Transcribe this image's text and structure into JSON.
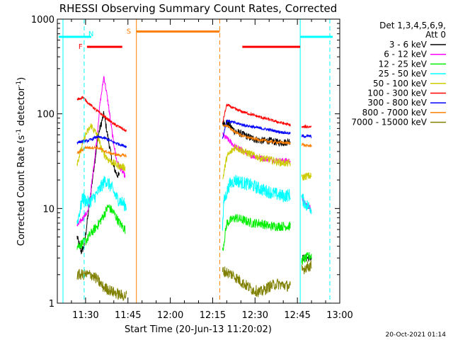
{
  "chart_data": {
    "type": "line",
    "title": "RHESSI Observing Summary Count Rates, Corrected",
    "xlabel": "Start Time (20-Jun-13 11:20:02)",
    "ylabel": "Corrected Count Rate (s⁻¹ detector⁻¹)",
    "ylabel_main": "Corrected Count Rate (s",
    "ylabel_sup1": "-1",
    "ylabel_mid": " detector",
    "ylabel_sup2": "-1",
    "ylabel_end": ")",
    "xlim_min": [
      20.0,
      120.0
    ],
    "ylim": [
      1,
      1000
    ],
    "yscale": "log",
    "x_ticks": [
      {
        "min": 30,
        "label": "11:30"
      },
      {
        "min": 45,
        "label": "11:45"
      },
      {
        "min": 60,
        "label": "12:00"
      },
      {
        "min": 75,
        "label": "12:15"
      },
      {
        "min": 90,
        "label": "12:30"
      },
      {
        "min": 105,
        "label": "12:45"
      },
      {
        "min": 120,
        "label": "13:00"
      }
    ],
    "y_ticks": [
      {
        "value": 1,
        "label": "1"
      },
      {
        "value": 10,
        "label": "10"
      },
      {
        "value": 100,
        "label": "100"
      },
      {
        "value": 1000,
        "label": "1000"
      }
    ],
    "legend": {
      "placement": "right",
      "header1": "Det 1,3,4,5,6,9,",
      "header2": "Att 0",
      "entries": [
        {
          "name": "3 - 6 keV",
          "color": "#000000"
        },
        {
          "name": "6 - 12 keV",
          "color": "#ff00ff"
        },
        {
          "name": "12 - 25 keV",
          "color": "#00ee00"
        },
        {
          "name": "25 - 50 keV",
          "color": "#00ffff"
        },
        {
          "name": "50 - 100 keV",
          "color": "#cccc00"
        },
        {
          "name": "100 - 300 keV",
          "color": "#ff0000"
        },
        {
          "name": "300 - 800 keV",
          "color": "#0000ff"
        },
        {
          "name": "800 - 7000 keV",
          "color": "#ff8000"
        },
        {
          "name": "7000 - 15000 keV",
          "color": "#808000"
        }
      ]
    },
    "series": [
      {
        "name": "3 - 6 keV",
        "color": "#000000",
        "noise": 0.04,
        "segments": [
          [
            [
              27,
              5.0
            ],
            [
              28.5,
              3.5
            ],
            [
              29.5,
              4.0
            ],
            [
              31.5,
              12
            ],
            [
              33,
              28
            ],
            [
              34.5,
              60
            ],
            [
              36.5,
              100
            ],
            [
              38,
              55
            ],
            [
              39.5,
              30
            ],
            [
              41,
              23
            ],
            [
              42,
              22
            ]
          ],
          [
            [
              78.5,
              80
            ],
            [
              80,
              80
            ],
            [
              83,
              65
            ],
            [
              86,
              60
            ],
            [
              89,
              55
            ],
            [
              92,
              52
            ],
            [
              95,
              52
            ],
            [
              98,
              50
            ],
            [
              101,
              50
            ],
            [
              102.5,
              52
            ]
          ],
          [
            [
              106.5,
              3.0
            ],
            [
              110,
              3.0
            ]
          ]
        ]
      },
      {
        "name": "6 - 12 keV",
        "color": "#ff00ff",
        "noise": 0.03,
        "segments": [
          [
            [
              27,
              6.5
            ],
            [
              31,
              9.5
            ],
            [
              32.5,
              22
            ],
            [
              34,
              55
            ],
            [
              35,
              120
            ],
            [
              36.5,
              250
            ],
            [
              38,
              130
            ],
            [
              39.5,
              60
            ],
            [
              41,
              32
            ],
            [
              42.5,
              26
            ],
            [
              44,
              22
            ]
          ],
          [
            [
              78.5,
              60
            ],
            [
              80,
              55
            ],
            [
              83,
              45
            ],
            [
              86,
              40
            ],
            [
              89,
              36
            ],
            [
              92,
              34
            ],
            [
              95,
              33
            ],
            [
              98,
              32
            ],
            [
              102.5,
              32
            ]
          ],
          [
            [
              106.5,
              13
            ],
            [
              108,
              11
            ],
            [
              110,
              10
            ]
          ]
        ]
      },
      {
        "name": "12 - 25 keV",
        "color": "#00ee00",
        "noise": 0.05,
        "segments": [
          [
            [
              27,
              4.0
            ],
            [
              30,
              4.5
            ],
            [
              32,
              5.5
            ],
            [
              34,
              6.5
            ],
            [
              36,
              8.0
            ],
            [
              38,
              10.5
            ],
            [
              40,
              9.0
            ],
            [
              42,
              7.0
            ],
            [
              44,
              6.0
            ]
          ],
          [
            [
              78.5,
              3.5
            ],
            [
              80,
              7.0
            ],
            [
              83,
              8.0
            ],
            [
              86,
              7.5
            ],
            [
              89,
              7.0
            ],
            [
              92,
              7.0
            ],
            [
              95,
              6.5
            ],
            [
              98,
              6.5
            ],
            [
              102.5,
              6.5
            ]
          ],
          [
            [
              106.5,
              2.8
            ],
            [
              108,
              3.0
            ],
            [
              110,
              3.2
            ]
          ]
        ]
      },
      {
        "name": "25 - 50 keV",
        "color": "#00ffff",
        "noise": 0.07,
        "segments": [
          [
            [
              27,
              7.0
            ],
            [
              29,
              13
            ],
            [
              31,
              11.5
            ],
            [
              33,
              13
            ],
            [
              35,
              16
            ],
            [
              37,
              20
            ],
            [
              39,
              17
            ],
            [
              41,
              13
            ],
            [
              43,
              11.5
            ],
            [
              44.5,
              10.5
            ]
          ],
          [
            [
              78.5,
              6.5
            ],
            [
              79,
              12
            ],
            [
              81,
              18
            ],
            [
              83,
              20
            ],
            [
              86,
              18.5
            ],
            [
              89,
              17.5
            ],
            [
              92,
              16
            ],
            [
              95,
              15
            ],
            [
              98,
              14
            ],
            [
              100,
              13.5
            ],
            [
              102.5,
              14
            ]
          ],
          [
            [
              106.5,
              13
            ],
            [
              108,
              11
            ],
            [
              110,
              10
            ]
          ]
        ]
      },
      {
        "name": "50 - 100 keV",
        "color": "#cccc00",
        "noise": 0.04,
        "segments": [
          [
            [
              27,
              30
            ],
            [
              30,
              60
            ],
            [
              32,
              75
            ],
            [
              34,
              60
            ],
            [
              36,
              40
            ],
            [
              38,
              33
            ],
            [
              40,
              30
            ],
            [
              42,
              28
            ],
            [
              44,
              27
            ]
          ],
          [
            [
              78.5,
              20
            ],
            [
              80,
              35
            ],
            [
              83,
              45
            ],
            [
              86,
              40
            ],
            [
              89,
              37
            ],
            [
              92,
              34
            ],
            [
              95,
              33
            ],
            [
              98,
              31
            ],
            [
              101,
              30
            ],
            [
              102.5,
              30
            ]
          ],
          [
            [
              106.5,
              21
            ],
            [
              108,
              22
            ],
            [
              110,
              22
            ]
          ]
        ]
      },
      {
        "name": "100 - 300 keV",
        "color": "#ff0000",
        "noise": 0.015,
        "segments": [
          [
            [
              27,
              140
            ],
            [
              29,
              150
            ],
            [
              31,
              130
            ],
            [
              34,
              108
            ],
            [
              37,
              92
            ],
            [
              40,
              78
            ],
            [
              43,
              70
            ],
            [
              44.5,
              65
            ]
          ],
          [
            [
              78.5,
              80
            ],
            [
              80,
              125
            ],
            [
              83,
              112
            ],
            [
              86,
              104
            ],
            [
              89,
              98
            ],
            [
              92,
              92
            ],
            [
              95,
              87
            ],
            [
              98,
              82
            ],
            [
              101,
              78
            ],
            [
              102.5,
              76
            ]
          ],
          [
            [
              106.5,
              72
            ],
            [
              108,
              73
            ],
            [
              110,
              73
            ]
          ]
        ]
      },
      {
        "name": "300 - 800 keV",
        "color": "#0000ff",
        "noise": 0.015,
        "segments": [
          [
            [
              27,
              50
            ],
            [
              31,
              52
            ],
            [
              34,
              57
            ],
            [
              37,
              55
            ],
            [
              40,
              50
            ],
            [
              44.5,
              45
            ]
          ],
          [
            [
              78.5,
              55
            ],
            [
              80,
              85
            ],
            [
              83,
              80
            ],
            [
              86,
              76
            ],
            [
              89,
              73
            ],
            [
              92,
              70
            ],
            [
              95,
              68
            ],
            [
              98,
              65
            ],
            [
              102.5,
              62
            ]
          ],
          [
            [
              106.5,
              58
            ],
            [
              108,
              58
            ],
            [
              110,
              58
            ]
          ]
        ]
      },
      {
        "name": "800 - 7000 keV",
        "color": "#ff8000",
        "noise": 0.015,
        "segments": [
          [
            [
              27,
              38
            ],
            [
              30,
              44
            ],
            [
              34,
              44
            ],
            [
              38,
              39
            ],
            [
              41,
              37
            ],
            [
              44.5,
              36
            ]
          ],
          [
            [
              78.5,
              75
            ],
            [
              80,
              75
            ],
            [
              83,
              64
            ],
            [
              86,
              58
            ],
            [
              89,
              55
            ],
            [
              92,
              53
            ],
            [
              95,
              51
            ],
            [
              98,
              50
            ],
            [
              102.5,
              49
            ]
          ],
          [
            [
              106.5,
              48
            ],
            [
              108,
              46
            ],
            [
              110,
              46
            ]
          ]
        ]
      },
      {
        "name": "7000 - 15000 keV",
        "color": "#808000",
        "noise": 0.06,
        "segments": [
          [
            [
              27,
              2.0
            ],
            [
              32,
              2.0
            ],
            [
              34,
              1.8
            ],
            [
              36,
              1.5
            ],
            [
              38,
              1.4
            ],
            [
              40,
              1.3
            ],
            [
              43,
              1.2
            ],
            [
              44.5,
              1.2
            ]
          ],
          [
            [
              78.5,
              2.2
            ],
            [
              82,
              2.0
            ],
            [
              86,
              1.6
            ],
            [
              89,
              1.4
            ],
            [
              92,
              1.3
            ],
            [
              95,
              1.5
            ],
            [
              98,
              1.6
            ],
            [
              102.5,
              1.5
            ]
          ],
          [
            [
              106.5,
              2.2
            ],
            [
              108,
              2.4
            ],
            [
              110,
              2.5
            ]
          ]
        ]
      }
    ],
    "flag_lines": [
      {
        "name": "cyan-solid-1",
        "x": 22.0,
        "style": "solid",
        "color": "#00ffff"
      },
      {
        "name": "cyan-dashed-1",
        "x": 29.5,
        "style": "dashed",
        "color": "#00ffff"
      },
      {
        "name": "orange-solid",
        "x": 48.0,
        "style": "solid",
        "color": "#ff8000"
      },
      {
        "name": "orange-dashed",
        "x": 77.5,
        "style": "dashed",
        "color": "#ff8000"
      },
      {
        "name": "cyan-solid-2",
        "x": 106.0,
        "style": "solid",
        "color": "#00ffff"
      },
      {
        "name": "cyan-dashed-2",
        "x": 116.5,
        "style": "dashed",
        "color": "#00ffff"
      }
    ],
    "flag_bars": [
      {
        "label": "",
        "x1": 20.5,
        "x2": 29.5,
        "y": 650,
        "color": "#00ffff"
      },
      {
        "label": "N",
        "x1": 29.5,
        "x2": 32.0,
        "y": 650,
        "color": "#00ffff"
      },
      {
        "label": "F",
        "x1": 30.5,
        "x2": 43.0,
        "y": 510,
        "color": "#ff0000"
      },
      {
        "label": "S",
        "x1": 48.0,
        "x2": 77.5,
        "y": 740,
        "color": "#ff8000"
      },
      {
        "label": "",
        "x1": 85.5,
        "x2": 106.0,
        "y": 510,
        "color": "#ff0000"
      },
      {
        "label": "",
        "x1": 106.0,
        "x2": 117.5,
        "y": 650,
        "color": "#00ffff"
      }
    ],
    "footer_timestamp": "20-Oct-2021 01:14"
  }
}
